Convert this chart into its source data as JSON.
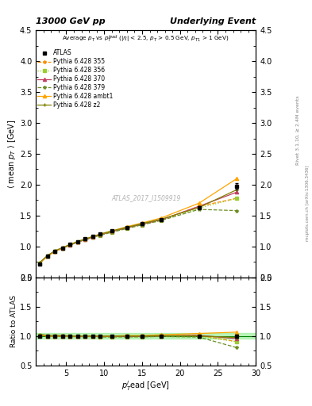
{
  "title_left": "13000 GeV pp",
  "title_right": "Underlying Event",
  "watermark": "ATLAS_2017_I1509919",
  "xlabel": "p$_T^l$ead [GeV]",
  "ylabel": "⟨ mean p$_T$ ⟩ [GeV]",
  "ylabel_ratio": "Ratio to ATLAS",
  "ylim_main": [
    0.5,
    4.5
  ],
  "ylim_ratio": [
    0.5,
    2.0
  ],
  "xlim": [
    1,
    30
  ],
  "atlas_x": [
    1.5,
    2.5,
    3.5,
    4.5,
    5.5,
    6.5,
    7.5,
    8.5,
    9.5,
    11.0,
    13.0,
    15.0,
    17.5,
    22.5,
    27.5
  ],
  "atlas_y": [
    0.72,
    0.84,
    0.92,
    0.97,
    1.03,
    1.08,
    1.12,
    1.16,
    1.2,
    1.25,
    1.31,
    1.37,
    1.43,
    1.63,
    1.97
  ],
  "atlas_yerr": [
    0.01,
    0.01,
    0.01,
    0.01,
    0.01,
    0.01,
    0.01,
    0.01,
    0.01,
    0.01,
    0.01,
    0.01,
    0.01,
    0.02,
    0.05
  ],
  "mc_x": [
    1.5,
    2.5,
    3.5,
    4.5,
    5.5,
    6.5,
    7.5,
    8.5,
    9.5,
    11.0,
    13.0,
    15.0,
    17.5,
    22.5,
    27.5
  ],
  "mc355_y": [
    0.73,
    0.84,
    0.92,
    0.98,
    1.03,
    1.07,
    1.11,
    1.15,
    1.19,
    1.24,
    1.3,
    1.36,
    1.43,
    1.65,
    1.78
  ],
  "mc356_y": [
    0.73,
    0.84,
    0.92,
    0.97,
    1.02,
    1.07,
    1.11,
    1.15,
    1.18,
    1.23,
    1.29,
    1.35,
    1.42,
    1.62,
    1.78
  ],
  "mc370_y": [
    0.73,
    0.84,
    0.92,
    0.97,
    1.02,
    1.07,
    1.11,
    1.15,
    1.19,
    1.24,
    1.3,
    1.36,
    1.43,
    1.65,
    1.88
  ],
  "mc379_y": [
    0.73,
    0.84,
    0.92,
    0.97,
    1.02,
    1.07,
    1.11,
    1.15,
    1.18,
    1.23,
    1.29,
    1.35,
    1.42,
    1.6,
    1.58
  ],
  "mc_ambt1_y": [
    0.73,
    0.84,
    0.92,
    0.97,
    1.03,
    1.08,
    1.12,
    1.16,
    1.2,
    1.25,
    1.32,
    1.38,
    1.46,
    1.7,
    2.1
  ],
  "mc_z2_y": [
    0.74,
    0.85,
    0.93,
    0.98,
    1.03,
    1.08,
    1.12,
    1.16,
    1.2,
    1.25,
    1.31,
    1.37,
    1.44,
    1.63,
    1.92
  ],
  "color_355": "#FF8C00",
  "color_356": "#9ACD32",
  "color_370": "#C04060",
  "color_379": "#6B8E23",
  "color_ambt1": "#FFA500",
  "color_z2": "#808000",
  "label_atlas": "ATLAS",
  "label_355": "Pythia 6.428 355",
  "label_356": "Pythia 6.428 356",
  "label_370": "Pythia 6.428 370",
  "label_379": "Pythia 6.428 379",
  "label_ambt1": "Pythia 6.428 ambt1",
  "label_z2": "Pythia 6.428 z2",
  "rivet_label": "Rivet 3.1.10, ≥ 2.4M events",
  "mcplots_label": "mcplots.cern.ch [arXiv:1306.3436]"
}
